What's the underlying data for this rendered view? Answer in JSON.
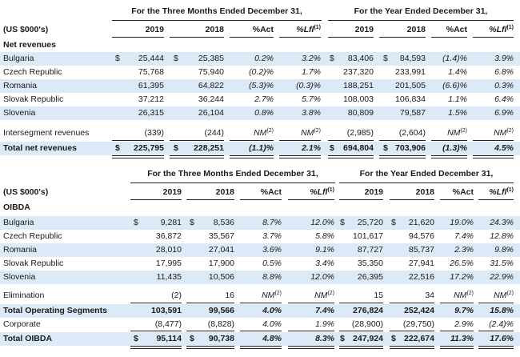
{
  "revenues": {
    "group_3m": "For the Three Months Ended December 31,",
    "group_yr": "For the Year Ended December 31,",
    "units": "(US $000's)",
    "section": "Net revenues",
    "headers": [
      "2019",
      "2018",
      "%Act",
      "%Lfl",
      "2019",
      "2018",
      "%Act",
      "%Lfl"
    ],
    "note_mark": "(1)",
    "rows": [
      {
        "label": "Bulgaria",
        "cur1": "$",
        "v1": "25,444",
        "cur2": "$",
        "v2": "25,385",
        "p1": "0.2%",
        "l1": "3.2%",
        "cur3": "$",
        "v3": "83,406",
        "cur4": "$",
        "v4": "84,593",
        "p2": "(1.4)%",
        "l2": "3.9%"
      },
      {
        "label": "Czech Republic",
        "v1": "75,768",
        "v2": "75,940",
        "p1": "(0.2)%",
        "l1": "1.7%",
        "v3": "237,320",
        "v4": "233,991",
        "p2": "1.4%",
        "l2": "6.8%"
      },
      {
        "label": "Romania",
        "v1": "61,395",
        "v2": "64,822",
        "p1": "(5.3)%",
        "l1": "(0.3)%",
        "v3": "188,251",
        "v4": "201,505",
        "p2": "(6.6)%",
        "l2": "0.3%"
      },
      {
        "label": "Slovak Republic",
        "v1": "37,212",
        "v2": "36,244",
        "p1": "2.7%",
        "l1": "5.7%",
        "v3": "108,003",
        "v4": "106,834",
        "p2": "1.1%",
        "l2": "6.4%"
      },
      {
        "label": "Slovenia",
        "v1": "26,315",
        "v2": "26,104",
        "p1": "0.8%",
        "l1": "3.8%",
        "v3": "80,809",
        "v4": "79,587",
        "p2": "1.5%",
        "l2": "6.9%"
      },
      {
        "label": "Intersegment revenues",
        "v1": "(339)",
        "v2": "(244)",
        "p1": "NM",
        "l1": "NM",
        "v3": "(2,985)",
        "v4": "(2,604)",
        "p2": "NM",
        "l2": "NM",
        "nm": "(2)"
      },
      {
        "label": "Total net revenues",
        "cur1": "$",
        "v1": "225,795",
        "cur2": "$",
        "v2": "228,251",
        "p1": "(1.1)%",
        "l1": "2.1%",
        "cur3": "$",
        "v3": "694,804",
        "cur4": "$",
        "v4": "703,906",
        "p2": "(1.3)%",
        "l2": "4.5%"
      }
    ]
  },
  "oibda": {
    "group_3m": "For the Three Months Ended December 31,",
    "group_yr": "For the Year Ended December 31,",
    "units": "(US $000's)",
    "section": "OIBDA",
    "headers": [
      "2019",
      "2018",
      "%Act",
      "%Lfl",
      "2019",
      "2018",
      "%Act",
      "%Lfl"
    ],
    "note_mark": "(1)",
    "rows": [
      {
        "label": "Bulgaria",
        "cur1": "$",
        "v1": "9,281",
        "cur2": "$",
        "v2": "8,536",
        "p1": "8.7%",
        "l1": "12.0%",
        "cur3": "$",
        "v3": "25,720",
        "cur4": "$",
        "v4": "21,620",
        "p2": "19.0%",
        "l2": "24.3%"
      },
      {
        "label": "Czech Republic",
        "v1": "36,872",
        "v2": "35,567",
        "p1": "3.7%",
        "l1": "5.8%",
        "v3": "101,617",
        "v4": "94,576",
        "p2": "7.4%",
        "l2": "12.8%"
      },
      {
        "label": "Romania",
        "v1": "28,010",
        "v2": "27,041",
        "p1": "3.6%",
        "l1": "9.1%",
        "v3": "87,727",
        "v4": "85,737",
        "p2": "2.3%",
        "l2": "9.8%"
      },
      {
        "label": "Slovak Republic",
        "v1": "17,995",
        "v2": "17,900",
        "p1": "0.5%",
        "l1": "3.4%",
        "v3": "35,350",
        "v4": "27,941",
        "p2": "26.5%",
        "l2": "31.5%"
      },
      {
        "label": "Slovenia",
        "v1": "11,435",
        "v2": "10,506",
        "p1": "8.8%",
        "l1": "12.0%",
        "v3": "26,395",
        "v4": "22,516",
        "p2": "17.2%",
        "l2": "22.9%"
      },
      {
        "label": "Elimination",
        "v1": "(2)",
        "v2": "16",
        "p1": "NM",
        "l1": "NM",
        "v3": "15",
        "v4": "34",
        "p2": "NM",
        "l2": "NM",
        "nm": "(2)"
      },
      {
        "label": "Total Operating Segments",
        "v1": "103,591",
        "v2": "99,566",
        "p1": "4.0%",
        "l1": "7.4%",
        "v3": "276,824",
        "v4": "252,424",
        "p2": "9.7%",
        "l2": "15.8%"
      },
      {
        "label": "Corporate",
        "v1": "(8,477)",
        "v2": "(8,828)",
        "p1": "4.0%",
        "l1": "1.9%",
        "v3": "(28,900)",
        "v4": "(29,750)",
        "p2": "2.9%",
        "l2": "(2.4)%"
      },
      {
        "label": "Total OIBDA",
        "cur1": "$",
        "v1": "95,114",
        "cur2": "$",
        "v2": "90,738",
        "p1": "4.8%",
        "l1": "8.3%",
        "cur3": "$",
        "v3": "247,924",
        "cur4": "$",
        "v4": "222,674",
        "p2": "11.3%",
        "l2": "17.6%"
      }
    ]
  }
}
